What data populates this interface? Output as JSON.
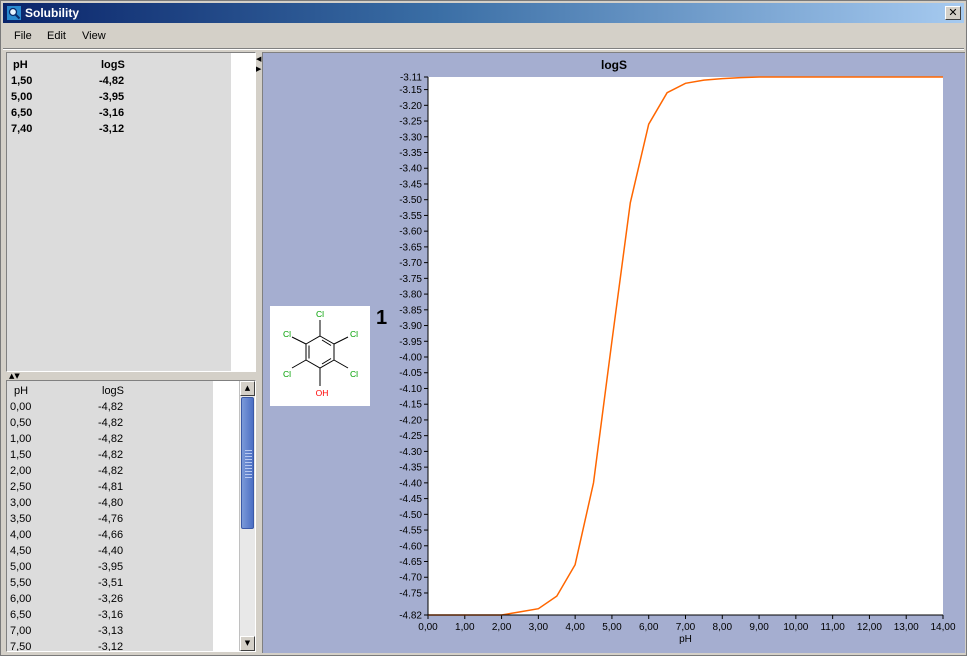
{
  "window": {
    "title": "Solubility",
    "close_label": "✕"
  },
  "menu": {
    "items": [
      "File",
      "Edit",
      "View"
    ]
  },
  "summary_table": {
    "headers": [
      "pH",
      "logS"
    ],
    "rows": [
      [
        "1,50",
        "-4,82"
      ],
      [
        "5,00",
        "-3,95"
      ],
      [
        "6,50",
        "-3,16"
      ],
      [
        "7,40",
        "-3,12"
      ]
    ]
  },
  "detail_table": {
    "headers": [
      "pH",
      "logS"
    ],
    "rows": [
      [
        "0,00",
        "-4,82"
      ],
      [
        "0,50",
        "-4,82"
      ],
      [
        "1,00",
        "-4,82"
      ],
      [
        "1,50",
        "-4,82"
      ],
      [
        "2,00",
        "-4,82"
      ],
      [
        "2,50",
        "-4,81"
      ],
      [
        "3,00",
        "-4,80"
      ],
      [
        "3,50",
        "-4,76"
      ],
      [
        "4,00",
        "-4,66"
      ],
      [
        "4,50",
        "-4,40"
      ],
      [
        "5,00",
        "-3,95"
      ],
      [
        "5,50",
        "-3,51"
      ],
      [
        "6,00",
        "-3,26"
      ],
      [
        "6,50",
        "-3,16"
      ],
      [
        "7,00",
        "-3,13"
      ],
      [
        "7,50",
        "-3,12"
      ]
    ]
  },
  "structure": {
    "compound_number": "1",
    "atom_labels": {
      "cl_top": "Cl",
      "cl_upper_left": "Cl",
      "cl_upper_right": "Cl",
      "cl_lower_left": "Cl",
      "cl_lower_right": "Cl",
      "oh": "OH"
    },
    "colors": {
      "chlorine": "#00a000",
      "oxygen": "#ff0000",
      "bond": "#000000"
    }
  },
  "icons": {
    "app": "magnifier-icon",
    "close": "close-icon",
    "splitter": "splitter-arrows-icon",
    "scroll_up": "scroll-up-icon",
    "scroll_down": "scroll-down-icon"
  },
  "colors": {
    "panel_background": "#a5aed0",
    "curve": "#ff6600",
    "title_bar_start": "#0a246a",
    "title_bar_end": "#a6caf0"
  },
  "chart_data": {
    "type": "line",
    "title": "logS",
    "xlabel": "pH",
    "ylabel": "",
    "xlim": [
      0,
      14
    ],
    "ylim": [
      -4.82,
      -3.11
    ],
    "x_ticks": [
      "0,00",
      "1,00",
      "2,00",
      "3,00",
      "4,00",
      "5,00",
      "6,00",
      "7,00",
      "8,00",
      "9,00",
      "10,00",
      "11,00",
      "12,00",
      "13,00",
      "14,00"
    ],
    "y_ticks": [
      "-3.11",
      "-3.15",
      "-3.20",
      "-3.25",
      "-3.30",
      "-3.35",
      "-3.40",
      "-3.45",
      "-3.50",
      "-3.55",
      "-3.60",
      "-3.65",
      "-3.70",
      "-3.75",
      "-3.80",
      "-3.85",
      "-3.90",
      "-3.95",
      "-4.00",
      "-4.05",
      "-4.10",
      "-4.15",
      "-4.20",
      "-4.25",
      "-4.30",
      "-4.35",
      "-4.40",
      "-4.45",
      "-4.50",
      "-4.55",
      "-4.60",
      "-4.65",
      "-4.70",
      "-4.75",
      "-4.82"
    ],
    "y_tick_values": [
      -3.11,
      -3.15,
      -3.2,
      -3.25,
      -3.3,
      -3.35,
      -3.4,
      -3.45,
      -3.5,
      -3.55,
      -3.6,
      -3.65,
      -3.7,
      -3.75,
      -3.8,
      -3.85,
      -3.9,
      -3.95,
      -4.0,
      -4.05,
      -4.1,
      -4.15,
      -4.2,
      -4.25,
      -4.3,
      -4.35,
      -4.4,
      -4.45,
      -4.5,
      -4.55,
      -4.6,
      -4.65,
      -4.7,
      -4.75,
      -4.82
    ],
    "grid": false,
    "series": [
      {
        "x": [
          0,
          0.5,
          1,
          1.5,
          2,
          2.5,
          3,
          3.5,
          4,
          4.5,
          5,
          5.5,
          6,
          6.5,
          7,
          7.5,
          8,
          8.5,
          9,
          10,
          11,
          12,
          13,
          14
        ],
        "y": [
          -4.82,
          -4.82,
          -4.82,
          -4.82,
          -4.82,
          -4.81,
          -4.8,
          -4.76,
          -4.66,
          -4.4,
          -3.95,
          -3.51,
          -3.26,
          -3.16,
          -3.13,
          -3.12,
          -3.115,
          -3.112,
          -3.11,
          -3.11,
          -3.11,
          -3.11,
          -3.11,
          -3.11
        ]
      }
    ]
  }
}
